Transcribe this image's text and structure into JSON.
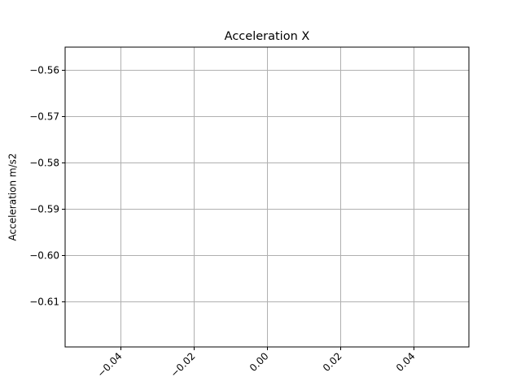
{
  "chart_data": {
    "type": "line",
    "title": "Acceleration X",
    "xlabel": "",
    "ylabel": "Acceleration m/s2",
    "xlim": [
      -0.055,
      0.055
    ],
    "ylim": [
      -0.6199,
      -0.5551
    ],
    "xticks": [
      -0.04,
      -0.02,
      0.0,
      0.02,
      0.04
    ],
    "xtick_labels": [
      "−0.04",
      "−0.02",
      "0.00",
      "0.02",
      "0.04"
    ],
    "yticks": [
      -0.56,
      -0.57,
      -0.58,
      -0.59,
      -0.6,
      -0.61
    ],
    "ytick_labels": [
      "−0.56",
      "−0.57",
      "−0.58",
      "−0.59",
      "−0.60",
      "−0.61"
    ],
    "grid": true,
    "series": [],
    "colors": {
      "grid": "#b0b0b0",
      "axes": "#000000",
      "background": "#ffffff"
    }
  }
}
